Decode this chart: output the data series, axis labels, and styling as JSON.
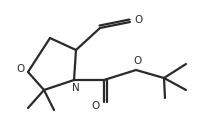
{
  "bg_color": "#ffffff",
  "line_color": "#2a2a2a",
  "line_width": 1.6,
  "figsize": [
    2.14,
    1.4
  ],
  "dpi": 100,
  "xlim": [
    0,
    214
  ],
  "ylim": [
    0,
    140
  ]
}
